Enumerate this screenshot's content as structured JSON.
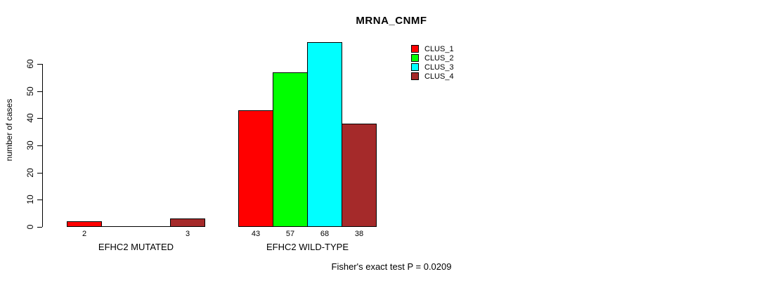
{
  "chart_data": {
    "type": "bar",
    "title": "MRNA_CNMF",
    "xlabel": "",
    "ylabel": "number of cases",
    "categories": [
      "EFHC2 MUTATED",
      "EFHC2 WILD-TYPE"
    ],
    "series": [
      {
        "name": "CLUS_1",
        "color": "#ff0000",
        "values": [
          2,
          43
        ]
      },
      {
        "name": "CLUS_2",
        "color": "#00ff00",
        "values": [
          0,
          57
        ]
      },
      {
        "name": "CLUS_3",
        "color": "#00ffff",
        "values": [
          0,
          68
        ]
      },
      {
        "name": "CLUS_4",
        "color": "#a52a2a",
        "values": [
          3,
          38
        ]
      }
    ],
    "bar_value_labels": [
      [
        "2",
        "",
        "",
        "3"
      ],
      [
        "43",
        "57",
        "68",
        "38"
      ]
    ],
    "yticks": [
      0,
      10,
      20,
      30,
      40,
      50,
      60
    ],
    "ylim": [
      0,
      68
    ],
    "grid": false,
    "legend": {
      "position": "top-right",
      "entries": [
        "CLUS_1",
        "CLUS_2",
        "CLUS_3",
        "CLUS_4"
      ]
    },
    "annotation": "Fisher's exact test P = 0.0209"
  }
}
